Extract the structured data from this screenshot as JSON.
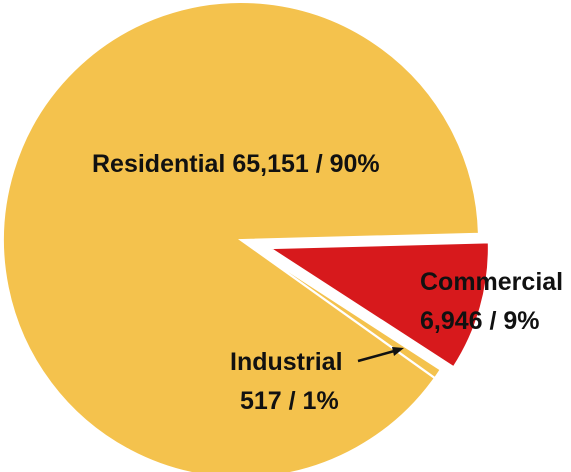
{
  "chart_data": {
    "type": "pie",
    "slices": [
      {
        "category": "Residential",
        "value": 65151,
        "percent_label": "90%",
        "color": "#F4C24D"
      },
      {
        "category": "Commercial",
        "value": 6946,
        "percent_label": "9%",
        "color": "#D7191C"
      },
      {
        "category": "Industrial",
        "value": 517,
        "percent_label": "1%",
        "color": "#F4C24D"
      }
    ],
    "labels": {
      "residential_line1": "Residential 65,151 / 90%",
      "commercial_line1": "Commercial",
      "commercial_line2": "6,946 / 9%",
      "industrial_line1": "Industrial",
      "industrial_line2": "517 / 1%"
    },
    "colors": {
      "residential": "#F4C24D",
      "commercial": "#D7191C",
      "industrial": "#F4C24D",
      "arrow": "#111111"
    }
  }
}
